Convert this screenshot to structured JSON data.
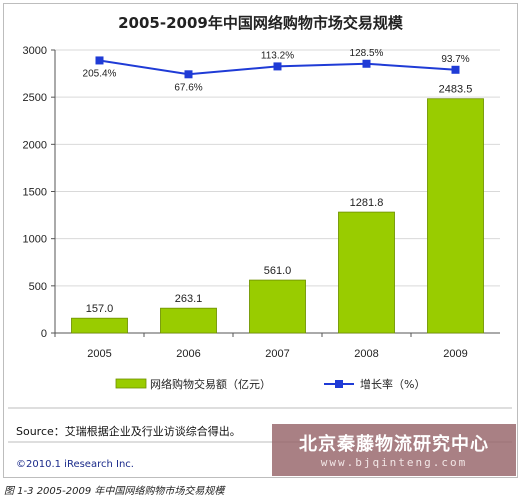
{
  "chart_data": {
    "type": "bar",
    "title": "2005-2009年中国网络购物市场交易规模",
    "categories": [
      "2005",
      "2006",
      "2007",
      "2008",
      "2009"
    ],
    "series": [
      {
        "name": "网络购物交易额（亿元）",
        "type": "bar",
        "values": [
          157.0,
          263.1,
          561.0,
          1281.8,
          2483.5
        ],
        "labels": [
          "157.0",
          "263.1",
          "561.0",
          "1281.8",
          "2483.5"
        ],
        "color": "#99cc00"
      },
      {
        "name": "增长率（%）",
        "type": "line",
        "values": [
          205.4,
          67.6,
          113.2,
          128.5,
          93.7
        ],
        "labels": [
          "205.4%",
          "67.6%",
          "113.2%",
          "128.5%",
          "93.7%"
        ],
        "color": "#1f3bd6"
      }
    ],
    "yticks": [
      "0",
      "500",
      "1000",
      "1500",
      "2000",
      "2500",
      "3000"
    ],
    "ylim": [
      0,
      3000
    ],
    "grid": true,
    "legend": "bottom"
  },
  "source": "Source：艾瑞根据企业及行业访谈综合得出。",
  "copyright": "©2010.1 iResearch Inc.",
  "caption": "图 1-3 2005-2009 年中国网络购物市场交易规模",
  "watermark": {
    "name": "北京秦藤物流研究中心",
    "url": "www.bjqinteng.com"
  }
}
